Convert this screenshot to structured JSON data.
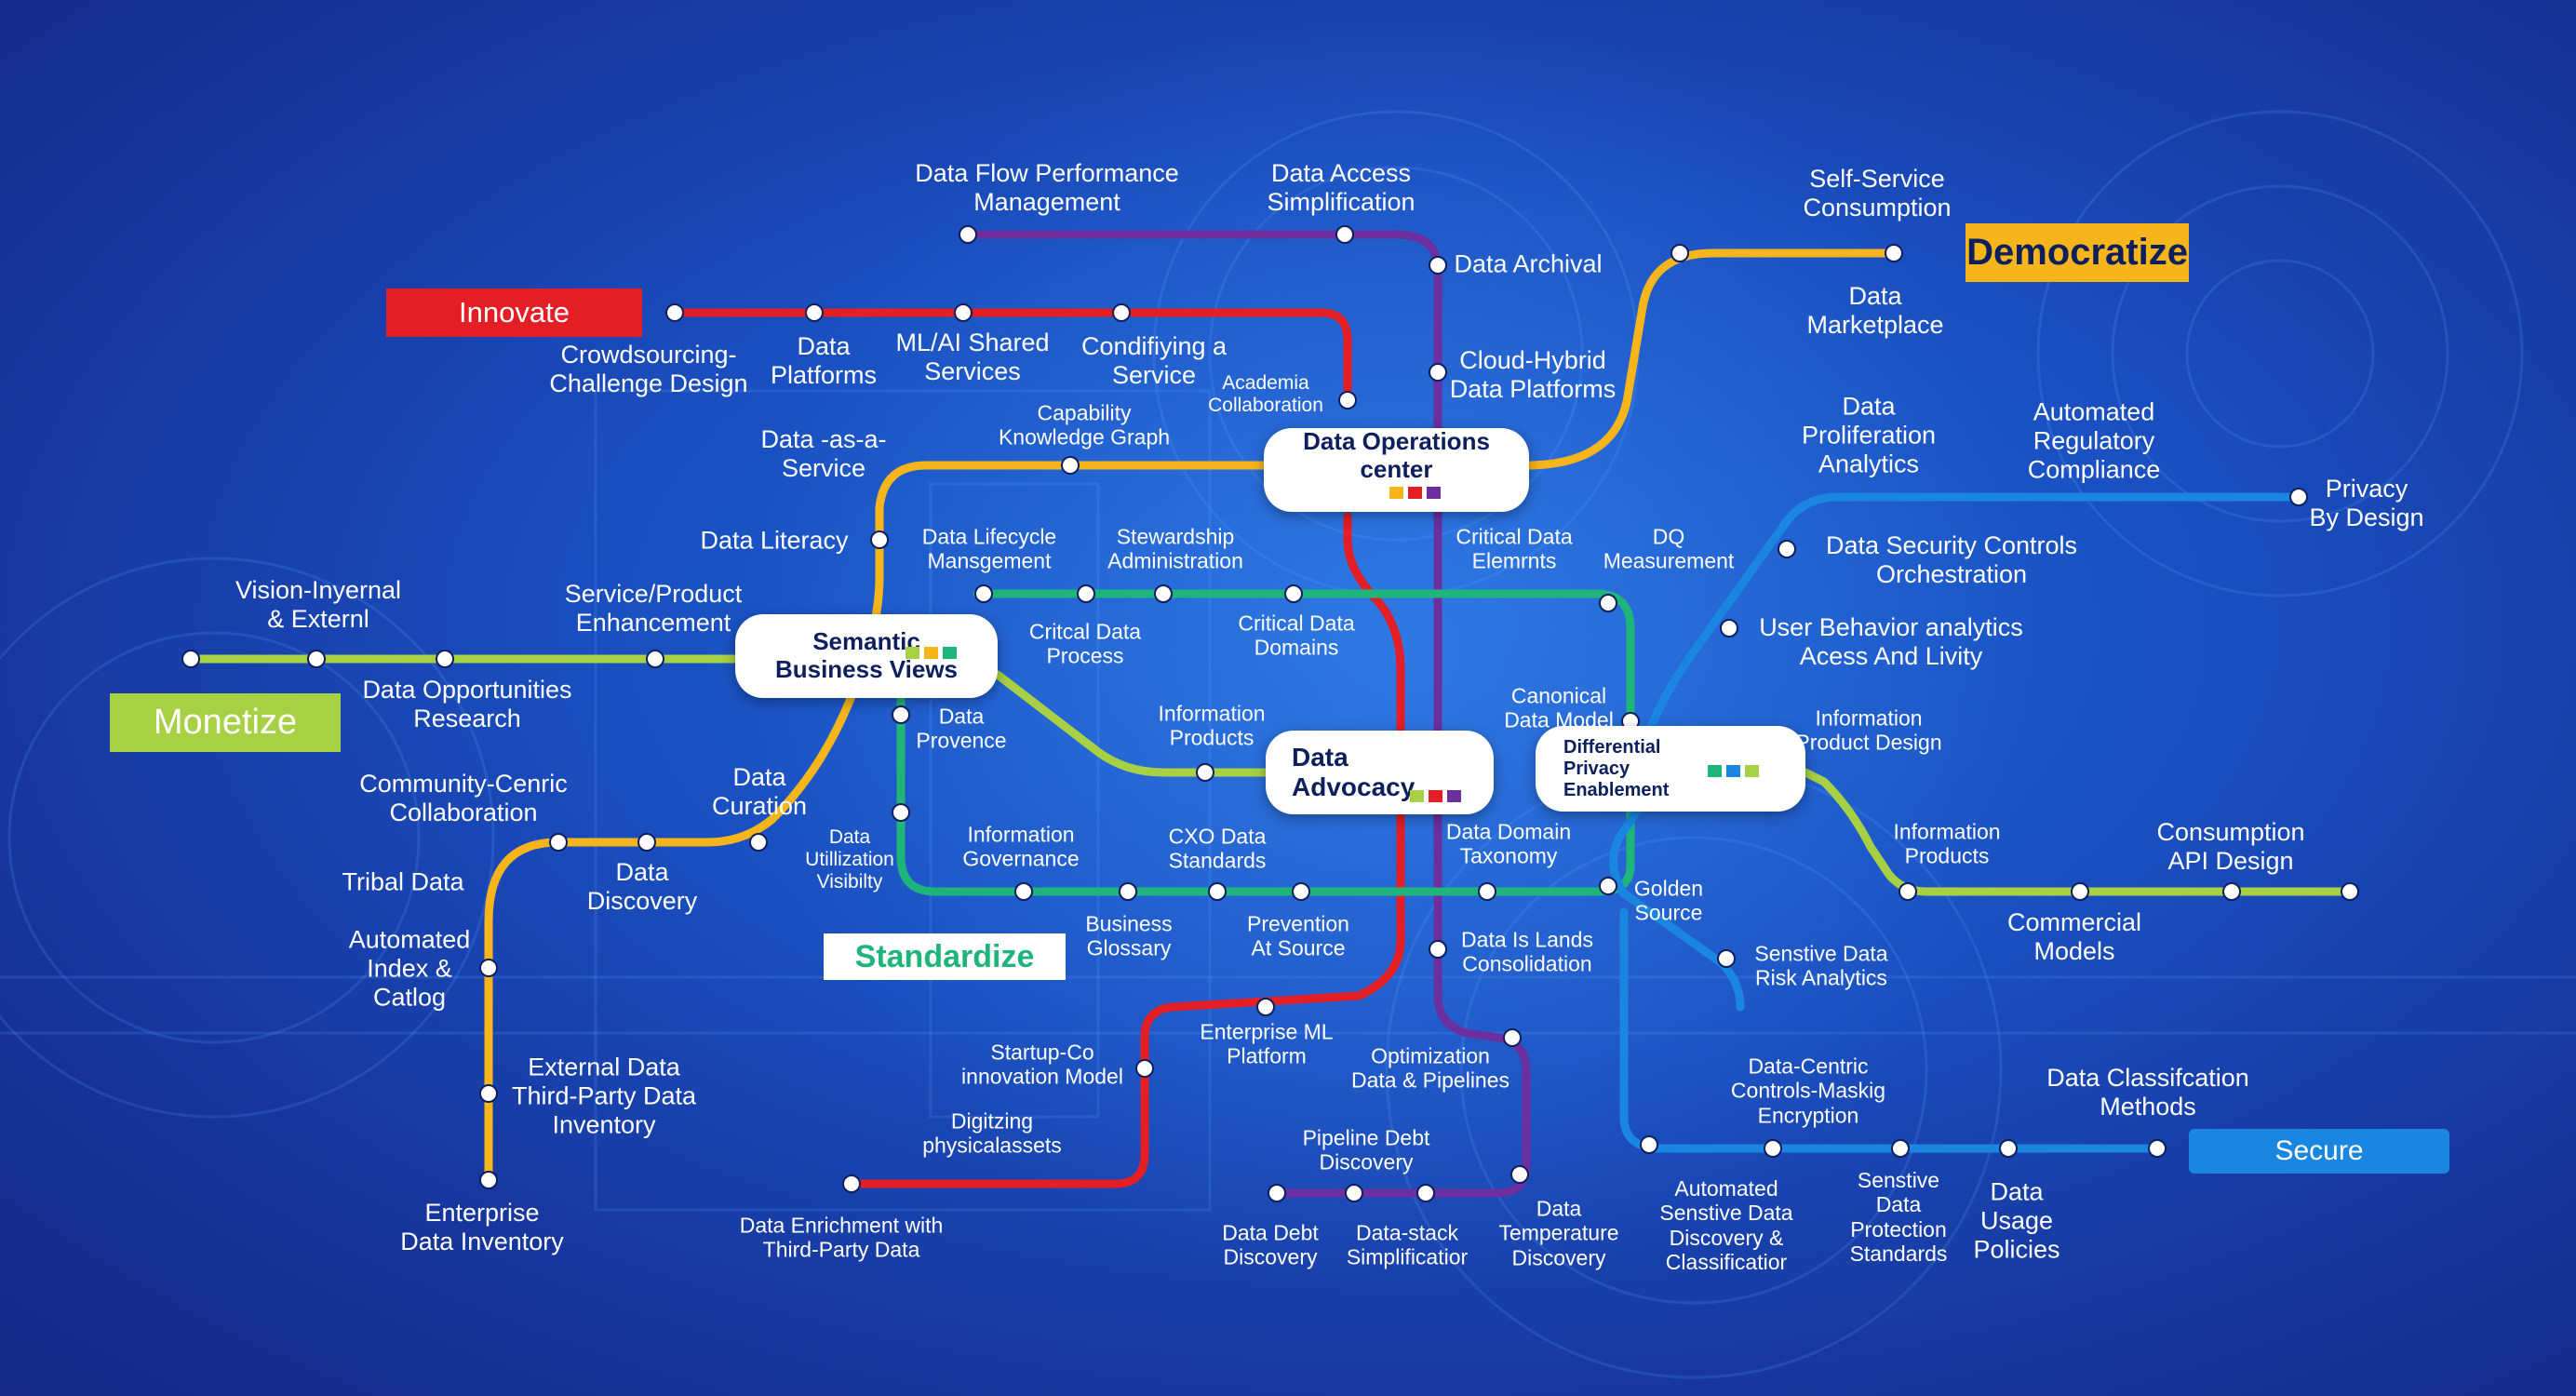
{
  "colors": {
    "red": "#e31e24",
    "yellow": "#f5b51b",
    "purple": "#6b2fa0",
    "green": "#1fb57a",
    "lime": "#a8d045",
    "blue": "#1a86e0",
    "navy": "#0d1f5c"
  },
  "tags": {
    "innovate": "Innovate",
    "democratize": "Democratize",
    "monetize": "Monetize",
    "standardize": "Standardize",
    "secure": "Secure"
  },
  "hubs": {
    "ops": "Data Operations\ncenter",
    "semantic": "Semantic\nBusiness Views",
    "advocacy": "Data\nAdvocacy",
    "privacy": "Differential\nPrivacy\nEnablement"
  },
  "stations": {
    "flow_perf": "Data Flow Performance\nManagement",
    "access_simpl": "Data Access\nSimplification",
    "self_service": "Self-Service\nConsumption",
    "archival": "Data Archival",
    "crowdsourcing": "Crowdsourcing-\nChallenge Design",
    "platforms": "Data\nPlatforms",
    "mlai": "ML/AI Shared\nServices",
    "condifying": "Condifiying a\nService",
    "academia": "Academia\nCollaboration",
    "cloud_hybrid": "Cloud-Hybrid\nData Platforms",
    "marketplace": "Data\nMarketplace",
    "daas": "Data -as-a-\nService",
    "capability": "Capability\nKnowledge Graph",
    "proliferation": "Data\nProliferation\nAnalytics",
    "automated_reg": "Automated\nRegulatory\nCompliance",
    "privacy_design": "Privacy\nBy Design",
    "literacy": "Data Literacy",
    "lifecycle": "Data Lifecycle\nMansgement",
    "stewardship": "Stewardship\nAdministration",
    "critical_elements": "Critical Data\nElemrnts",
    "dq": "DQ\nMeasurement",
    "security_controls": "Data Security Controls\nOrchestration",
    "vision": "Vision-Inyernal\n& Externl",
    "service_product": "Service/Product\nEnhancement",
    "critical_process": "Critcal Data\nProcess",
    "critical_domains": "Critical Data\nDomains",
    "user_behavior": "User Behavior analytics\nAcess And Livity",
    "opportunities": "Data Opportunities\nResearch",
    "provence": "Data\nProvence",
    "info_products": "Information\nProducts",
    "canonical": "Canonical\nData Model",
    "info_product_design": "Information\nProduct Design",
    "community": "Community-Cenric\nCollaboration",
    "curation": "Data\nCuration",
    "utilization": "Data\nUtillization\nVisibilty",
    "info_governance": "Information\nGovernance",
    "cxo": "CXO Data\nStandards",
    "domain_taxonomy": "Data Domain\nTaxonomy",
    "info_products2": "Information\nProducts",
    "consumption_api": "Consumption\nAPI Design",
    "tribal": "Tribal Data",
    "discovery": "Data\nDiscovery",
    "golden": "Golden\nSource",
    "automated_index": "Automated\nIndex &\nCatlog",
    "glossary": "Business\nGlossary",
    "prevention": "Prevention\nAt Source",
    "islands": "Data Is Lands\nConsolidation",
    "sensitive_risk": "Senstive Data\nRisk Analytics",
    "commercial": "Commercial\nModels",
    "enterprise_ml": "Enterprise ML\nPlatform",
    "startup": "Startup-Co\ninnovation Model",
    "optimization": "Optimization\nData & Pipelines",
    "external": "External Data\nThird-Party Data\nInventory",
    "data_centric": "Data-Centric\nControls-Maskig\nEncryption",
    "classification": "Data Classifcation\nMethods",
    "digitizing": "Digitzing\nphysicalassets",
    "pipeline_debt": "Pipeline Debt\nDiscovery",
    "enterprise_inventory": "Enterprise\nData Inventory",
    "enrichment": "Data Enrichment with\nThird-Party Data",
    "debt": "Data Debt\nDiscovery",
    "stack": "Data-stack\nSimplificatior",
    "temperature": "Data\nTemperature\nDiscovery",
    "auto_sensitive": "Automated\nSenstive Data\nDiscovery &\nClassificatior",
    "protection": "Senstive\nData\nProtection\nStandards",
    "usage": "Data\nUsage\nPolicies"
  }
}
